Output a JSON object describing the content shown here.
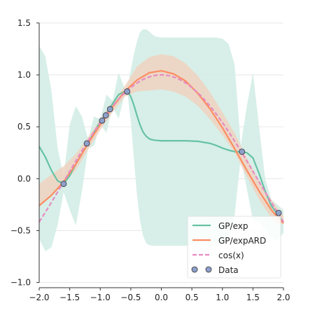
{
  "chart_data": {
    "type": "line",
    "xlim": [
      -2.0,
      2.0
    ],
    "ylim": [
      -1.05,
      1.6
    ],
    "grid": "horizontal",
    "legend_position": "bottom-right",
    "x_ticks": [
      -2.0,
      -1.5,
      -1.0,
      -0.5,
      0.0,
      0.5,
      1.0,
      1.5,
      2.0
    ],
    "y_ticks": [
      -1.0,
      -0.5,
      0.0,
      0.5,
      1.0,
      1.5
    ],
    "x_tick_labels": [
      "−2.0",
      "−1.5",
      "−1.0",
      "−0.5",
      "0.0",
      "0.5",
      "1.0",
      "1.5",
      "2.0"
    ],
    "y_tick_labels": [
      "−1.0",
      "−0.5",
      "0.0",
      "0.5",
      "1.0",
      "1.5"
    ],
    "colors": {
      "gp_exp": "#66c2a5",
      "gp_exp_band": "#d3ede5",
      "gp_expard": "#fc8d62",
      "gp_expard_band": "#f0d2bf",
      "cos": "#e78ac3",
      "data_fill": "#8da0cb",
      "data_edge": "#333333",
      "grid": "#e6e6e6",
      "axis": "#333333"
    },
    "series": [
      {
        "name": "GP/exp",
        "kind": "line",
        "x": [
          -2.0,
          -1.9,
          -1.8,
          -1.7,
          -1.6,
          -1.5,
          -1.4,
          -1.3,
          -1.2,
          -1.1,
          -1.0,
          -0.9,
          -0.8,
          -0.7,
          -0.6,
          -0.55,
          -0.5,
          -0.45,
          -0.4,
          -0.35,
          -0.3,
          -0.25,
          -0.2,
          -0.15,
          -0.1,
          0.0,
          0.2,
          0.4,
          0.6,
          0.8,
          0.9,
          1.0,
          1.1,
          1.2,
          1.3,
          1.4,
          1.5,
          1.6,
          1.7,
          1.8,
          1.9,
          2.0
        ],
        "y": [
          0.31,
          0.21,
          0.08,
          -0.02,
          -0.05,
          0.03,
          0.14,
          0.24,
          0.34,
          0.45,
          0.55,
          0.63,
          0.72,
          0.81,
          0.84,
          0.84,
          0.79,
          0.71,
          0.61,
          0.52,
          0.45,
          0.41,
          0.385,
          0.375,
          0.37,
          0.365,
          0.365,
          0.365,
          0.36,
          0.34,
          0.32,
          0.295,
          0.275,
          0.26,
          0.26,
          0.25,
          0.2,
          0.05,
          -0.12,
          -0.26,
          -0.34,
          -0.42
        ],
        "band_lower": [
          -0.58,
          -0.7,
          -0.66,
          -0.45,
          -0.13,
          -0.3,
          -0.45,
          -0.12,
          0.29,
          0.32,
          0.53,
          0.44,
          0.69,
          0.58,
          0.81,
          0.8,
          0.55,
          0.2,
          -0.15,
          -0.4,
          -0.55,
          -0.62,
          -0.64,
          -0.645,
          -0.645,
          -0.645,
          -0.645,
          -0.645,
          -0.645,
          -0.645,
          -0.645,
          -0.645,
          -0.6,
          -0.35,
          0.2,
          -0.1,
          -0.4,
          -0.42,
          -0.48,
          -0.56,
          -0.6,
          -0.52
        ],
        "band_upper": [
          1.28,
          1.18,
          0.85,
          0.3,
          0.02,
          0.52,
          0.7,
          0.6,
          0.38,
          0.6,
          0.57,
          0.81,
          0.75,
          1.02,
          0.87,
          0.88,
          1.05,
          1.2,
          1.32,
          1.41,
          1.44,
          1.44,
          1.42,
          1.39,
          1.37,
          1.36,
          1.36,
          1.36,
          1.36,
          1.36,
          1.36,
          1.35,
          1.3,
          1.1,
          0.32,
          0.7,
          1.02,
          0.5,
          0.0,
          -0.2,
          -0.25,
          -0.3
        ]
      },
      {
        "name": "GP/expARD",
        "kind": "line",
        "x": [
          -2.0,
          -1.8,
          -1.6,
          -1.4,
          -1.2,
          -1.0,
          -0.8,
          -0.6,
          -0.4,
          -0.2,
          0.0,
          0.2,
          0.4,
          0.6,
          0.8,
          1.0,
          1.2,
          1.4,
          1.6,
          1.8,
          1.9,
          2.0
        ],
        "y": [
          -0.26,
          -0.16,
          -0.03,
          0.14,
          0.34,
          0.52,
          0.69,
          0.84,
          0.95,
          1.02,
          1.04,
          1.01,
          0.94,
          0.82,
          0.67,
          0.49,
          0.29,
          0.08,
          -0.12,
          -0.3,
          -0.37,
          -0.43
        ],
        "band_lower": [
          -0.26,
          -0.16,
          -0.05,
          0.08,
          0.28,
          0.47,
          0.64,
          0.79,
          0.84,
          0.85,
          0.86,
          0.84,
          0.79,
          0.7,
          0.57,
          0.42,
          0.25,
          0.02,
          -0.2,
          -0.38,
          -0.44,
          -0.43
        ],
        "band_upper": [
          -0.05,
          0.04,
          0.12,
          0.24,
          0.4,
          0.57,
          0.74,
          0.89,
          1.08,
          1.17,
          1.2,
          1.18,
          1.11,
          0.99,
          0.83,
          0.64,
          0.44,
          0.2,
          -0.02,
          -0.2,
          -0.28,
          -0.36
        ]
      },
      {
        "name": "cos(x)",
        "kind": "dashed",
        "function": "cos"
      },
      {
        "name": "Data",
        "kind": "scatter",
        "x": [
          -1.6,
          -1.22,
          -0.97,
          -0.91,
          -0.84,
          -0.56,
          1.32,
          1.92
        ],
        "y": [
          -0.05,
          0.34,
          0.56,
          0.61,
          0.67,
          0.84,
          0.26,
          -0.33
        ]
      }
    ],
    "legend": [
      "GP/exp",
      "GP/expARD",
      "cos(x)",
      "Data"
    ]
  }
}
